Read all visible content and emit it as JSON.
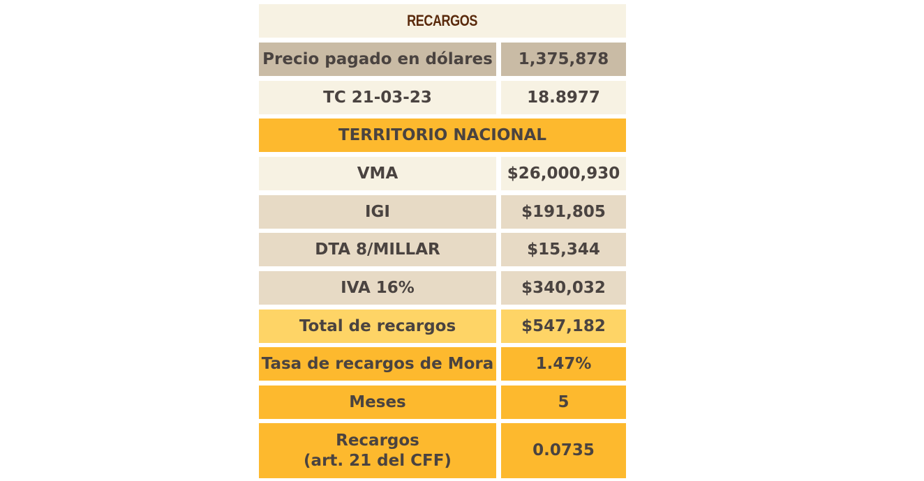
{
  "title": "RECARGOS",
  "rows": [
    {
      "label": "Precio pagado en dólares",
      "value": "1,375,878"
    },
    {
      "label": "TC 21-03-23",
      "value": "18.8977"
    }
  ],
  "section_header": "TERRITORIO NACIONAL",
  "taxes": [
    {
      "label": "VMA",
      "value": "$26,000,930"
    },
    {
      "label": "IGI",
      "value": "$191,805"
    },
    {
      "label": "DTA 8/MILLAR",
      "value": "$15,344"
    },
    {
      "label": "IVA 16%",
      "value": "$340,032"
    }
  ],
  "total": {
    "label": "Total de recargos",
    "value": "$547,182"
  },
  "mora": {
    "label": "Tasa de recargos de Mora",
    "value": "1.47%"
  },
  "meses": {
    "label": "Meses",
    "value": "5"
  },
  "recargos": {
    "label_line1": "Recargos",
    "label_line2": "(art. 21 del CFF)",
    "value": "0.0735"
  },
  "colors": {
    "title_text": "#5a2a0c",
    "text": "#4a4340",
    "tan": "#c9bba5",
    "cream": "#f7f2e3",
    "orange": "#fdb92e",
    "beige": "#e7dac5",
    "yellow": "#fed466"
  }
}
